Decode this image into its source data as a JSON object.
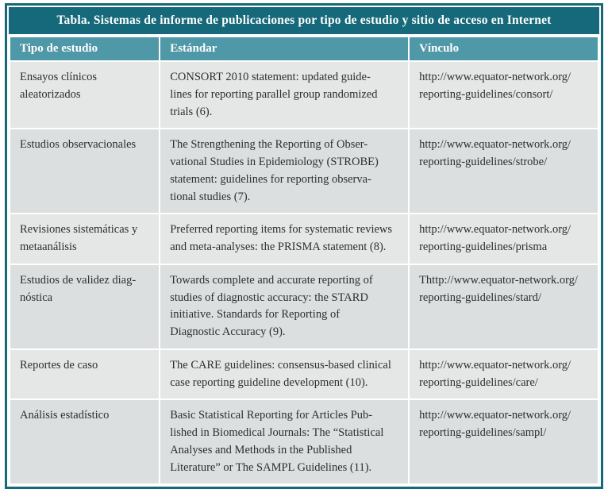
{
  "title": "Tabla. Sistemas de informe de publicaciones por tipo de estudio y  sitio de acceso en Internet",
  "colors": {
    "title_bar": "#15697a",
    "header_row": "#4f98a8",
    "row_light": "#e5e6e6",
    "row_dark": "#dcdfdf",
    "border": "#15697a",
    "body_text": "#2e2e2e"
  },
  "table": {
    "columns": [
      {
        "key": "tipo",
        "label": "Tipo de estudio"
      },
      {
        "key": "estandar",
        "label": "Estándar"
      },
      {
        "key": "vinculo",
        "label": "Vínculo"
      }
    ],
    "rows": [
      {
        "tipo": "Ensayos clínicos\naleatorizados",
        "estandar": "CONSORT 2010 statement: updated guide-\nlines for reporting parallel group randomized\ntrials (6).",
        "vinculo": "http://www.equator-network.org/\nreporting-guidelines/consort/"
      },
      {
        "tipo": "Estudios observacionales",
        "estandar": "The Strengthening the Reporting of Obser-\nvational Studies in Epidemiology (STROBE)\nstatement: guidelines for reporting observa-\ntional studies (7).",
        "vinculo": "http://www.equator-network.org/\nreporting-guidelines/strobe/"
      },
      {
        "tipo": "Revisiones sistemáticas y\nmetaanálisis",
        "estandar": "Preferred reporting items for systematic reviews\nand meta-analyses: the PRISMA statement (8).",
        "vinculo": "http://www.equator-network.org/\nreporting-guidelines/prisma"
      },
      {
        "tipo": "Estudios de validez diag-\nnóstica",
        "estandar": "Towards complete and accurate reporting of\nstudies of diagnostic accuracy: the STARD\ninitiative. Standards for Reporting of\nDiagnostic Accuracy (9).",
        "vinculo": "Thttp://www.equator-network.org/\nreporting-guidelines/stard/"
      },
      {
        "tipo": "Reportes de caso",
        "estandar": "The CARE guidelines: consensus-based clinical\ncase reporting guideline development (10).",
        "vinculo": "http://www.equator-network.org/\nreporting-guidelines/care/"
      },
      {
        "tipo": "Análisis estadístico",
        "estandar": "Basic Statistical Reporting for Articles Pub-\nlished in Biomedical Journals: The “Statistical\nAnalyses and Methods in the Published\nLiterature” or The SAMPL Guidelines (11).",
        "vinculo": "http://www.equator-network.org/\nreporting-guidelines/sampl/"
      }
    ]
  }
}
